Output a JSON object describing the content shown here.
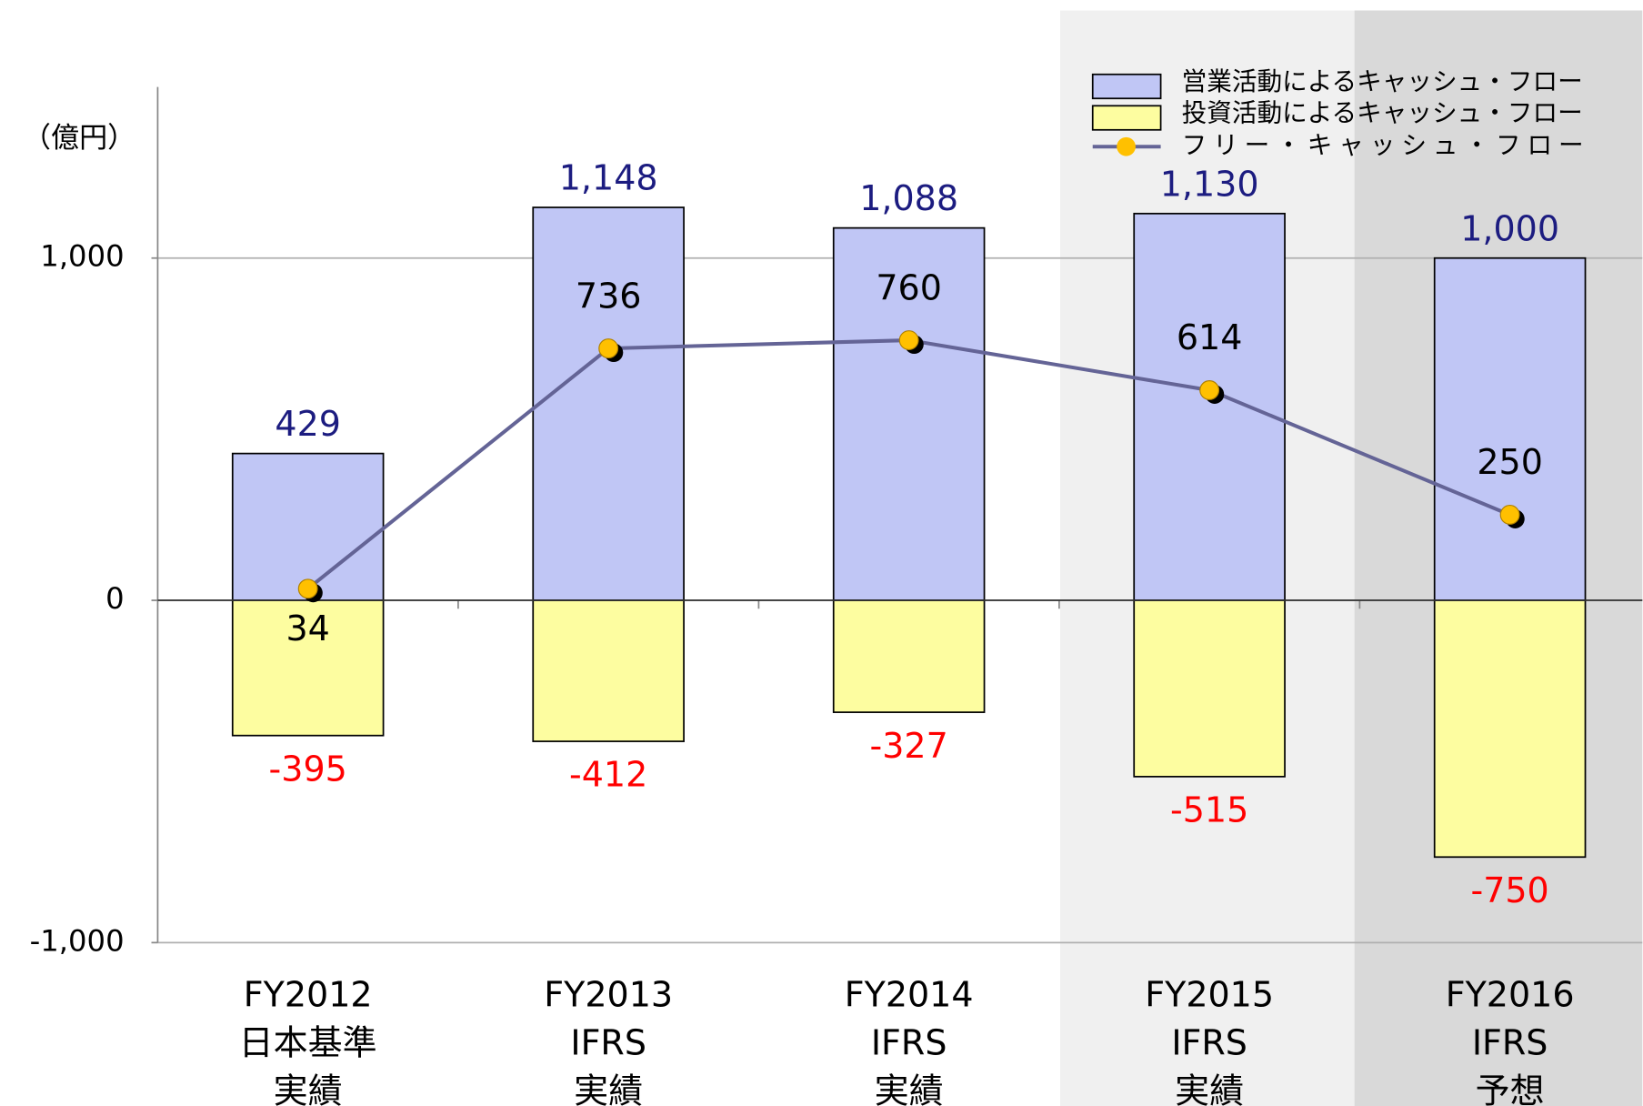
{
  "chart_data": {
    "type": "bar",
    "y_label": "（億円）",
    "categories": [
      [
        "FY2012",
        "日本基準",
        "実績"
      ],
      [
        "FY2013",
        "IFRS",
        "実績"
      ],
      [
        "FY2014",
        "IFRS",
        "実績"
      ],
      [
        "FY2015",
        "IFRS",
        "実績"
      ],
      [
        "FY2016",
        "IFRS",
        "予想"
      ]
    ],
    "series": [
      {
        "name": "営業活動によるキャッシュ・フロー",
        "type": "bar",
        "color": "#c0c6f5",
        "label_color": "#1c1c80",
        "values": [
          429,
          1148,
          1088,
          1130,
          1000
        ],
        "value_labels": [
          "429",
          "1,148",
          "1,088",
          "1,130",
          "1,000"
        ]
      },
      {
        "name": "投資活動によるキャッシュ・フロー",
        "type": "bar",
        "color": "#fdfda0",
        "label_color": "#ff0000",
        "values": [
          -395,
          -412,
          -327,
          -515,
          -750
        ]
      },
      {
        "name": "フリー・キャッシュ・フロー",
        "type": "line",
        "color": "#646496",
        "marker_color": "#ffc000",
        "label_color": "#000000",
        "values": [
          34,
          736,
          760,
          614,
          250
        ]
      }
    ],
    "ylim": [
      -1000,
      1500
    ],
    "yticks": [
      {
        "value": -1000,
        "label": "-1,000"
      },
      0,
      {
        "value": 1000,
        "label": "1,000"
      }
    ],
    "grid": true
  }
}
